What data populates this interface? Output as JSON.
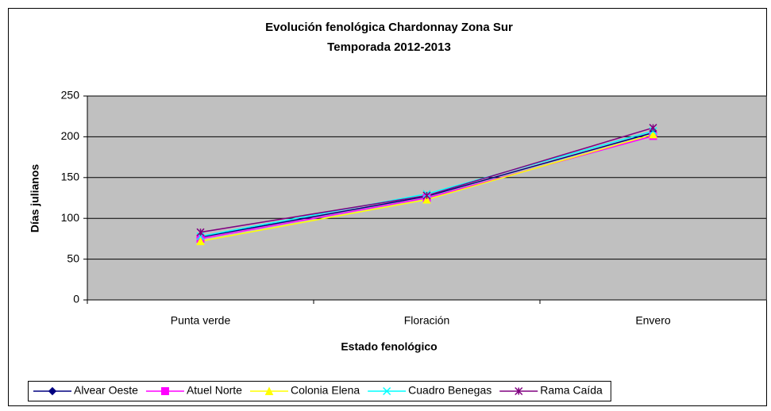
{
  "chart_data": {
    "type": "line",
    "title": "Evolución fenológica Chardonnay Zona Sur",
    "subtitle": "Temporada 2012-2013",
    "x_label": "Estado fenológico",
    "y_label": "Días julianos",
    "categories": [
      "Punta verde",
      "Floración",
      "Envero"
    ],
    "series": [
      {
        "name": "Alvear Oeste",
        "color": "#000080",
        "marker": "diamond",
        "values": [
          77,
          127,
          205
        ]
      },
      {
        "name": "Atuel Norte",
        "color": "#ff00ff",
        "marker": "square",
        "values": [
          75,
          125,
          201
        ]
      },
      {
        "name": "Colonia Elena",
        "color": "#ffff00",
        "marker": "triangle",
        "values": [
          72,
          123,
          203
        ]
      },
      {
        "name": "Cuadro Benegas",
        "color": "#00ffff",
        "marker": "x",
        "values": [
          78,
          130,
          207
        ]
      },
      {
        "name": "Rama Caída",
        "color": "#800080",
        "marker": "star",
        "values": [
          83,
          128,
          211
        ]
      }
    ],
    "ylim": [
      0,
      250
    ],
    "yticks": [
      0,
      50,
      100,
      150,
      200,
      250
    ],
    "grid": true,
    "plot_background": "#c0c0c0",
    "legend": "bottom"
  }
}
